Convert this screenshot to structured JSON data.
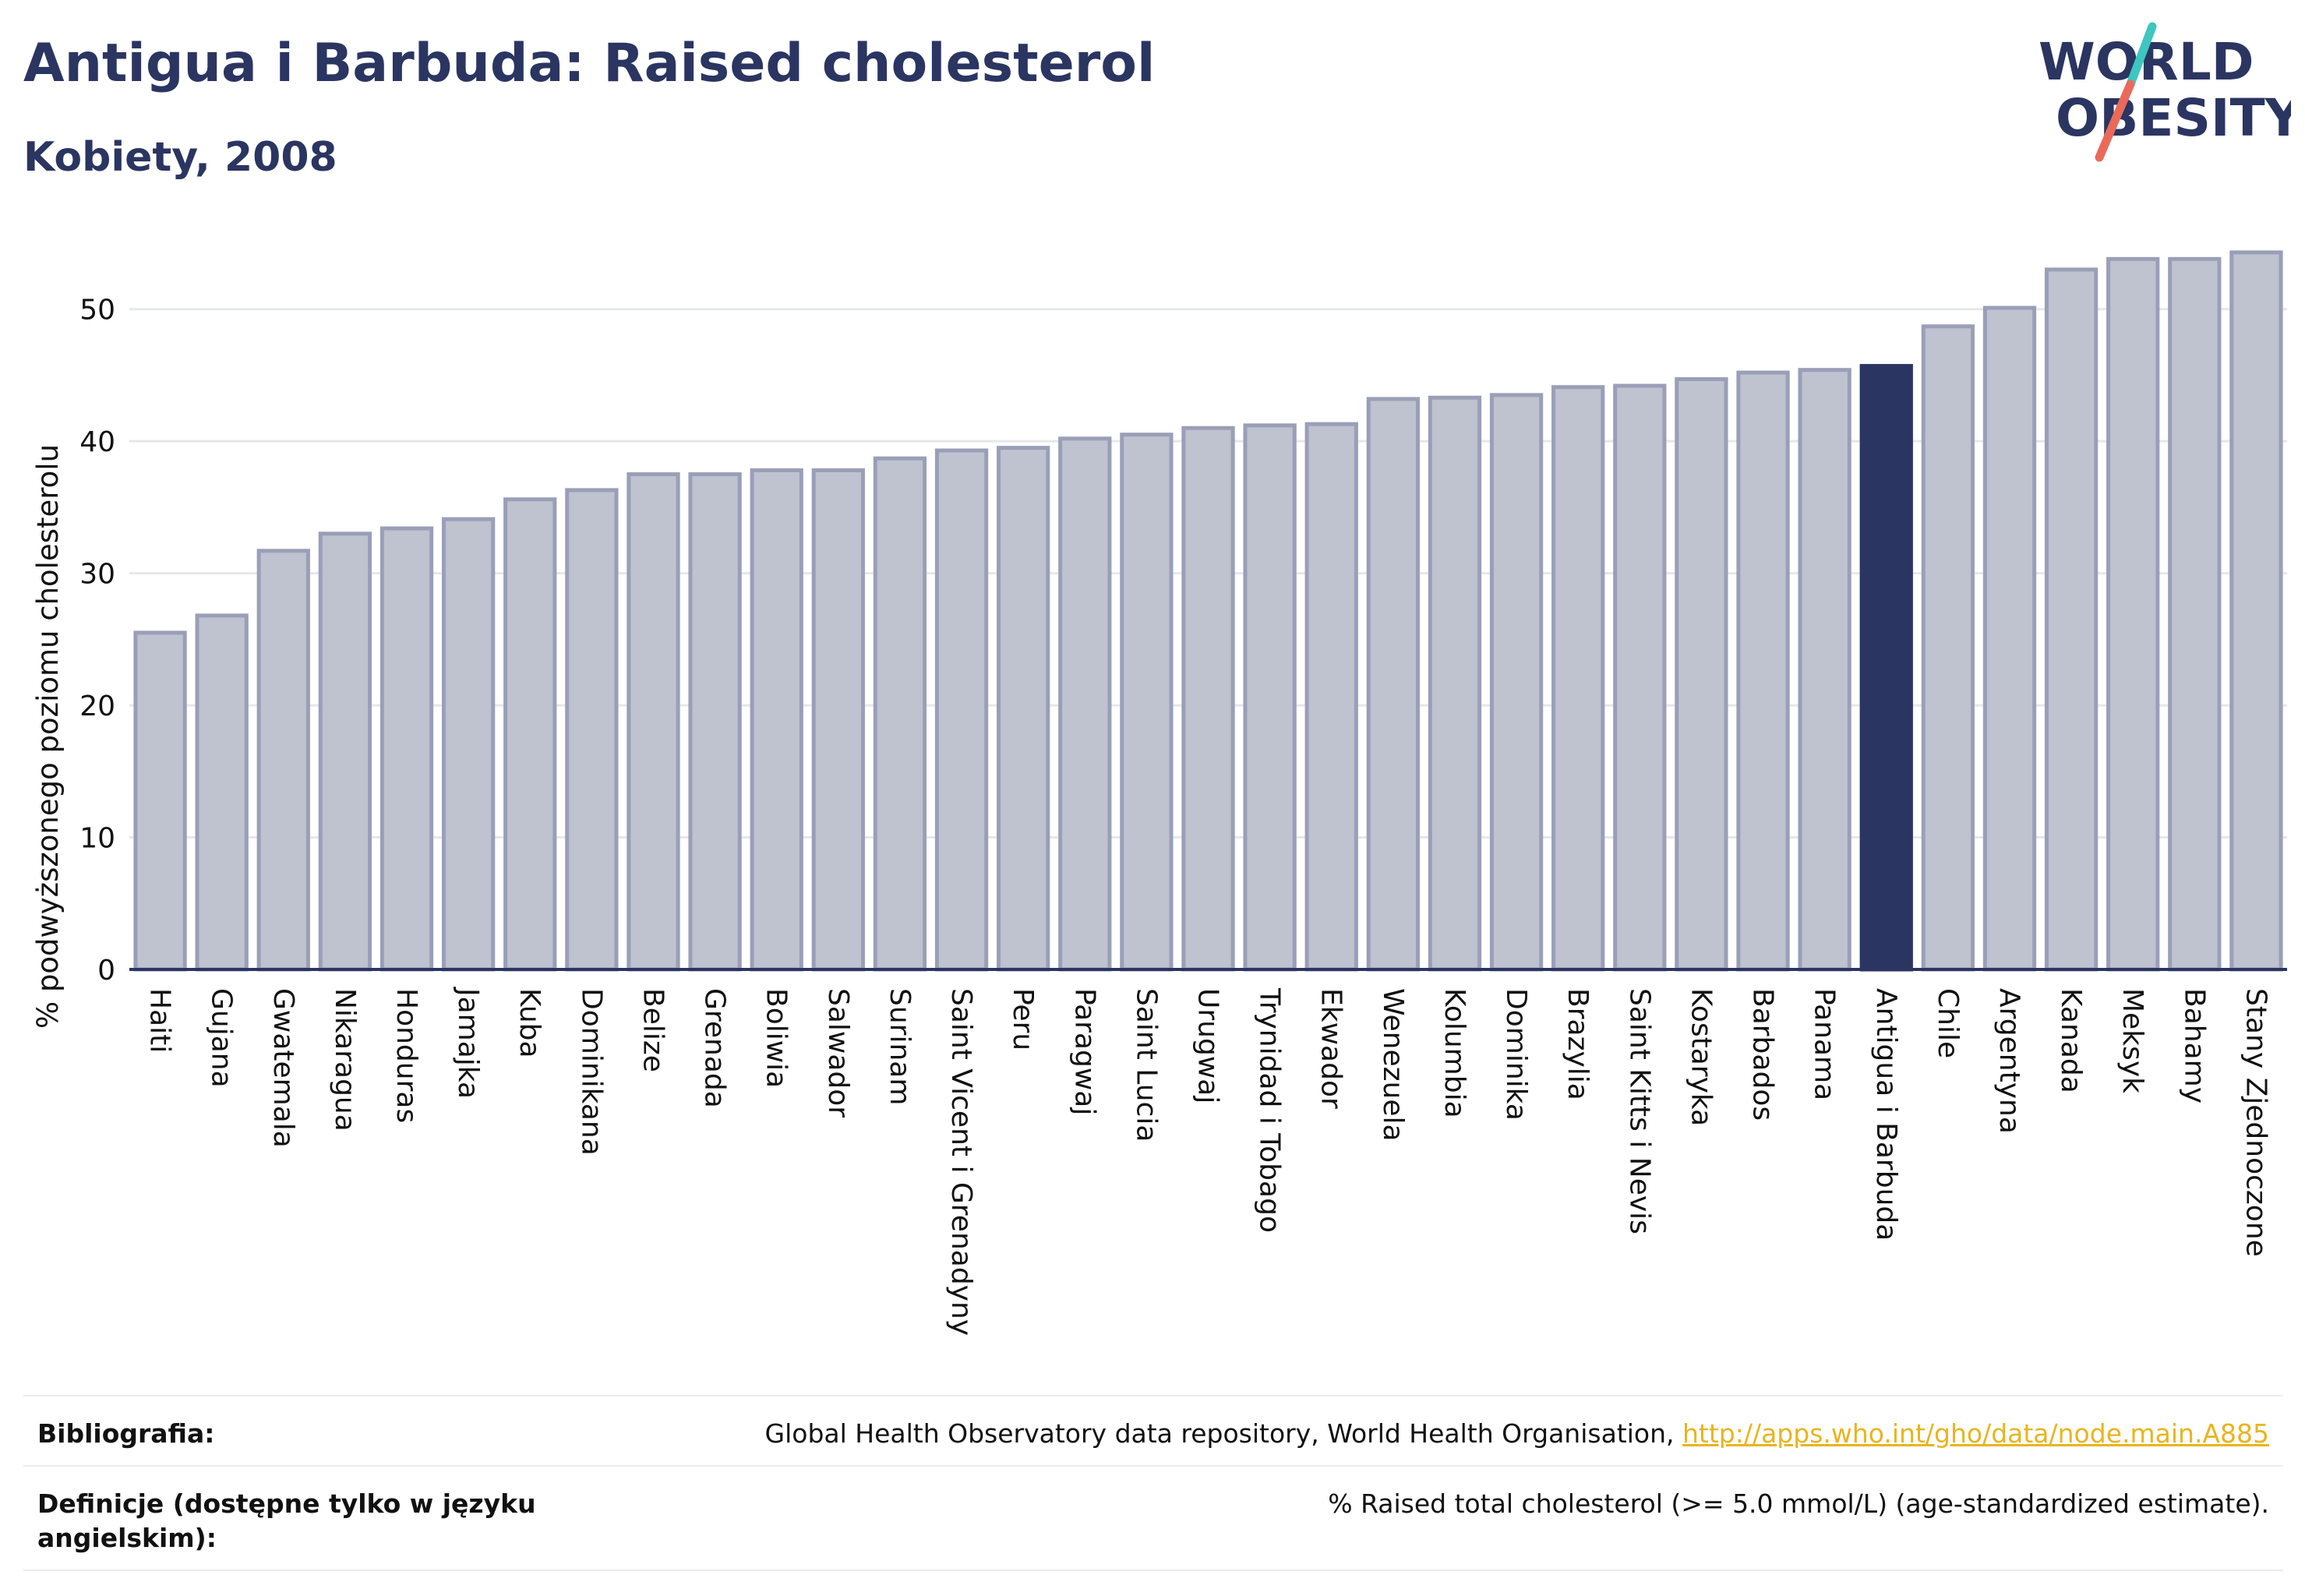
{
  "header": {
    "title": "Antigua i Barbuda: Raised cholesterol",
    "subtitle": "Kobiety, 2008"
  },
  "logo": {
    "line1": "WORLD",
    "line2": "OBESITY"
  },
  "colors": {
    "highlight_bar": "#2b3561",
    "bar_fill": "#bfc2cf",
    "bar_stroke": "#9a9fb8",
    "grid": "#e6e7ec",
    "axis": "#2b3561",
    "logo_slash_teal": "#3ec6c0",
    "logo_slash_coral": "#ea6a5a",
    "link": "#e8b51e"
  },
  "chart_data": {
    "type": "bar",
    "ylabel": "% podwyższonego poziomu cholesterolu",
    "xlabel": "",
    "ylim": [
      0,
      55
    ],
    "yticks": [
      0,
      10,
      20,
      30,
      40,
      50
    ],
    "grid": true,
    "highlight": "Antigua i Barbuda",
    "categories": [
      "Haiti",
      "Gujana",
      "Gwatemala",
      "Nikaragua",
      "Honduras",
      "Jamajka",
      "Kuba",
      "Dominikana",
      "Belize",
      "Grenada",
      "Boliwia",
      "Salwador",
      "Surinam",
      "Saint Vicent i Grenadyny",
      "Peru",
      "Paragwaj",
      "Saint Lucia",
      "Urugwaj",
      "Trynidad i Tobago",
      "Ekwador",
      "Wenezuela",
      "Kolumbia",
      "Dominika",
      "Brazylia",
      "Saint Kitts i Nevis",
      "Kostaryka",
      "Barbados",
      "Panama",
      "Antigua i Barbuda",
      "Chile",
      "Argentyna",
      "Kanada",
      "Meksyk",
      "Bahamy",
      "Stany Zjednoczone"
    ],
    "values": [
      25.5,
      26.8,
      31.7,
      33.0,
      33.4,
      34.1,
      35.6,
      36.3,
      37.5,
      37.5,
      37.8,
      37.8,
      38.7,
      39.3,
      39.5,
      40.2,
      40.5,
      41.0,
      41.2,
      41.3,
      43.2,
      43.3,
      43.5,
      44.1,
      44.2,
      44.7,
      45.2,
      45.4,
      45.7,
      48.7,
      50.1,
      53.0,
      53.8,
      53.8,
      54.3
    ]
  },
  "references": {
    "bibliography_label": "Bibliografia:",
    "bibliography_text": "Global Health Observatory data repository, World Health Organisation, ",
    "bibliography_link": "http://apps.who.int/gho/data/node.main.A885",
    "definitions_label": "Definicje (dostępne tylko w języku angielskim):",
    "definitions_text": "% Raised total cholesterol (>= 5.0 mmol/L) (age-standardized estimate)."
  }
}
